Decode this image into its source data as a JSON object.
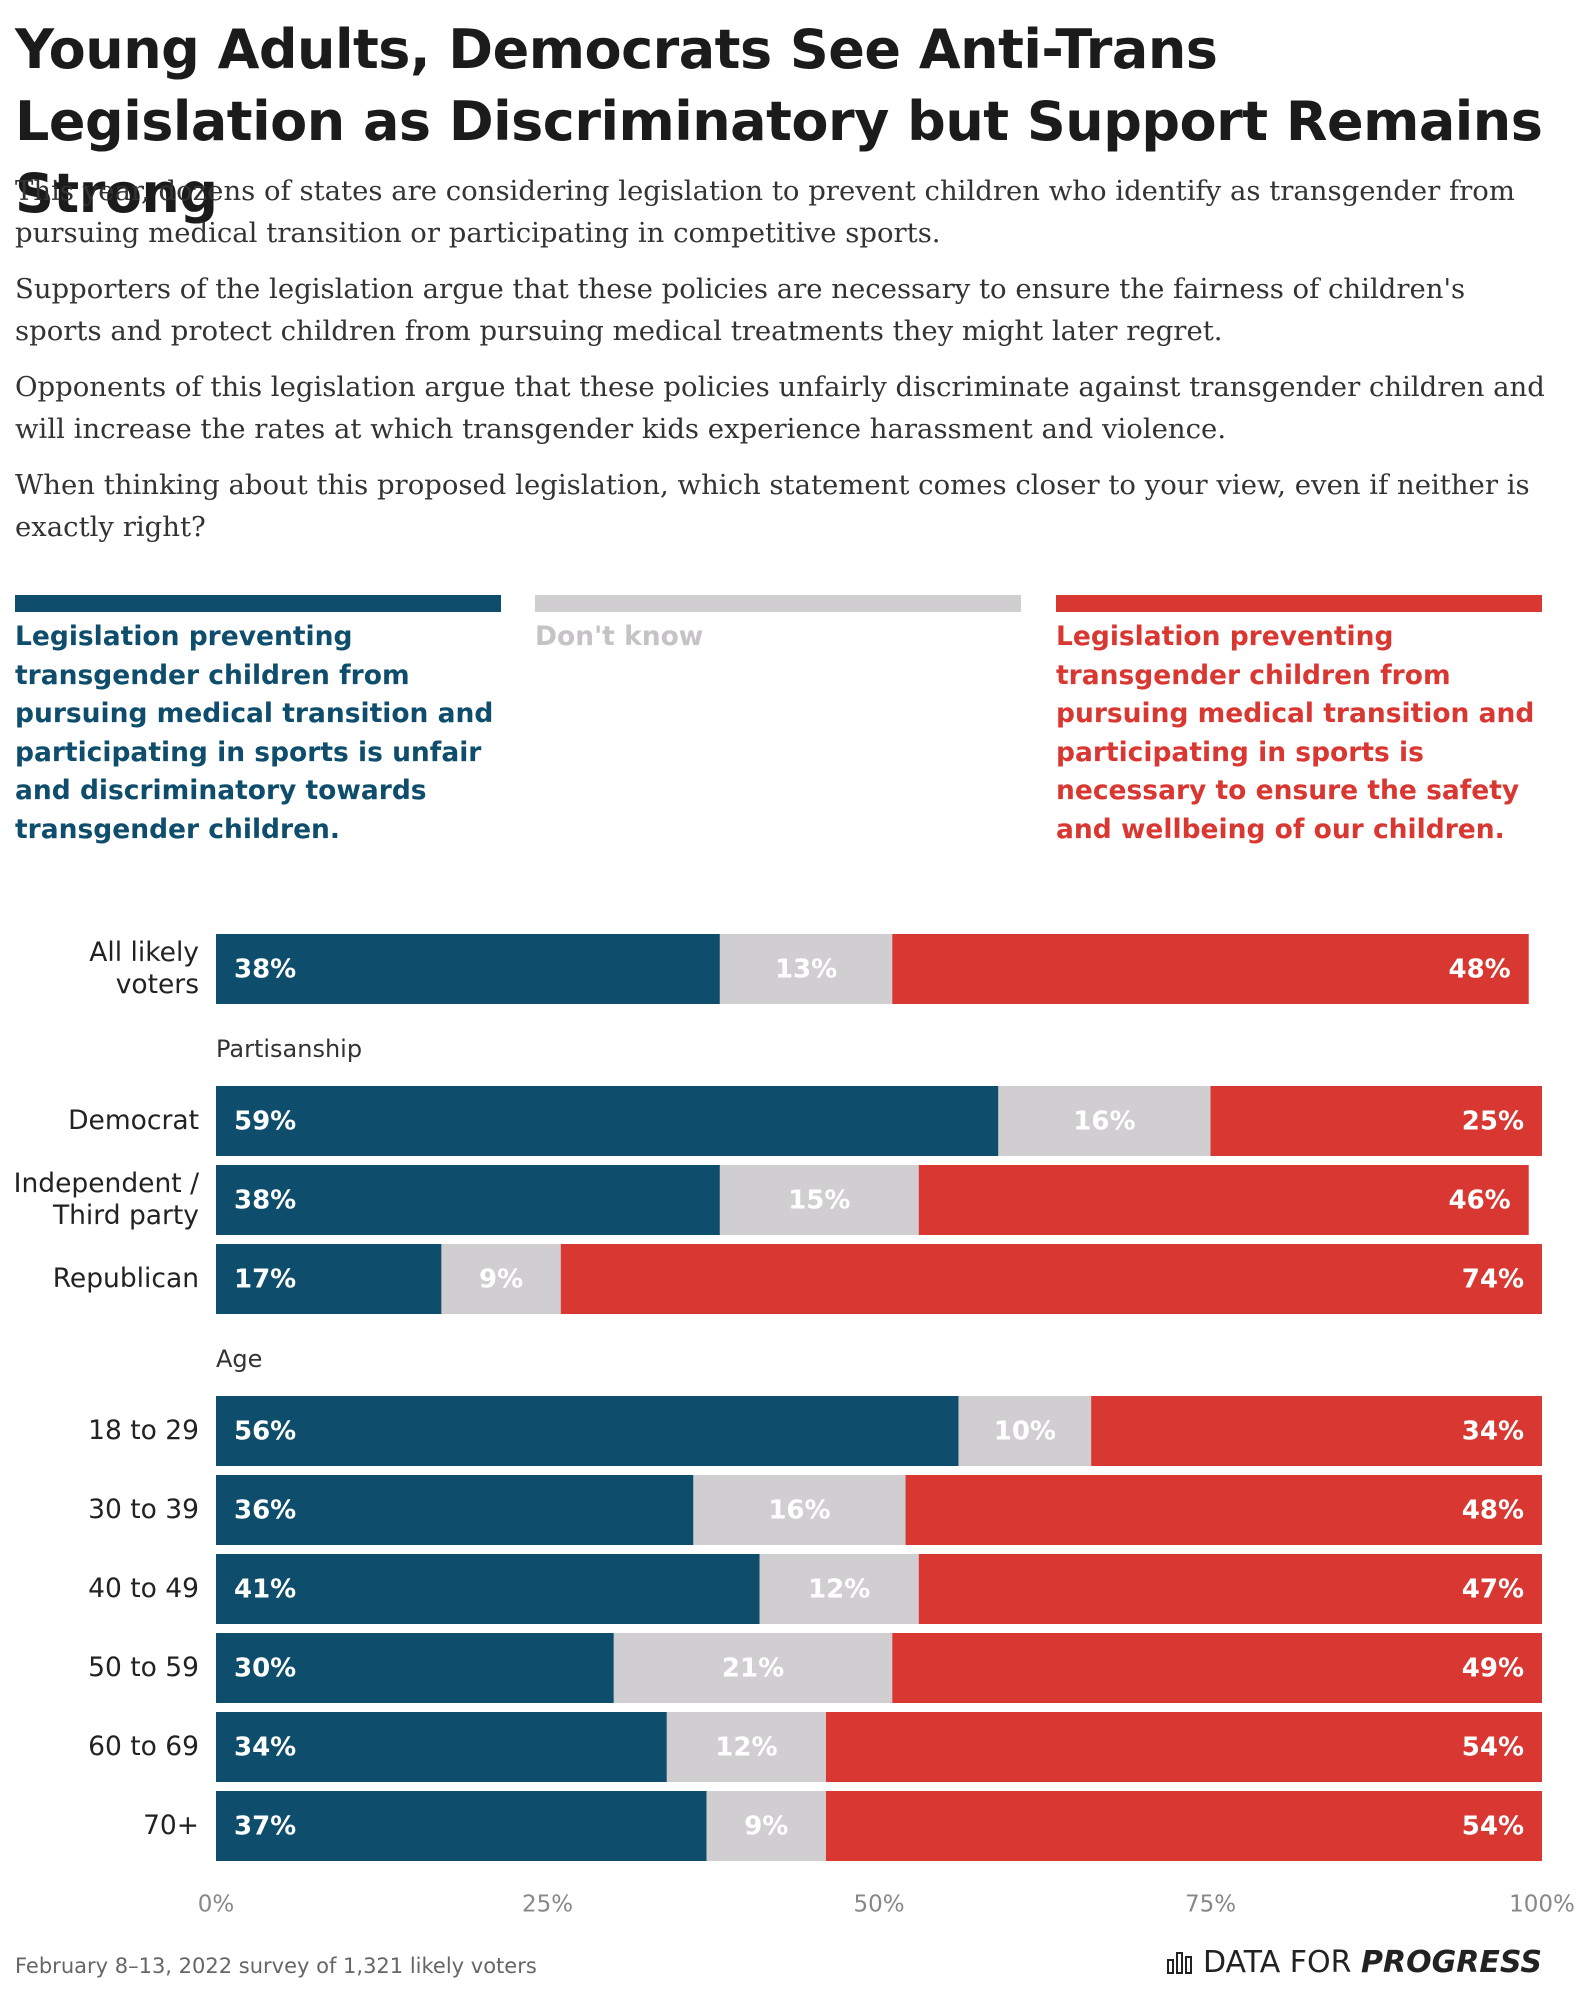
{
  "chart_data": {
    "type": "bar",
    "orientation": "horizontal",
    "stacked": true,
    "title": "Young Adults, Democrats See Anti-Trans Legislation as Discriminatory but Support Remains Strong",
    "description": [
      "This year, dozens of states are considering legislation to prevent children who identify as transgender from pursuing medical transition or participating in competitive sports.",
      "Supporters of the legislation argue that these policies are necessary to ensure the fairness of children's sports and protect children from pursuing medical treatments they might later regret.",
      "Opponents of this legislation argue that these policies unfairly discriminate against transgender children and will increase the rates at which transgender kids experience harassment and violence.",
      "When thinking about this proposed legislation, which statement comes closer to your view, even if neither is exactly right?"
    ],
    "categories": [
      "All likely voters",
      "Democrat",
      "Independent / Third party",
      "Republican",
      "18 to 29",
      "30 to 39",
      "40 to 49",
      "50 to 59",
      "60 to 69",
      "70+"
    ],
    "group_labels": [
      "Partisanship",
      "Age"
    ],
    "series": [
      {
        "name": "Legislation preventing transgender children from pursuing medical transition and participating in sports is unfair and discriminatory towards transgender children.",
        "color": "#0e4d6b",
        "values": [
          38,
          59,
          38,
          17,
          56,
          36,
          41,
          30,
          34,
          37
        ],
        "value_labels": [
          "38%",
          "59%",
          "38%",
          "17%",
          "56%",
          "36%",
          "41%",
          "30%",
          "34%",
          "37%"
        ]
      },
      {
        "name": "Don't know",
        "color": "#d1ced1",
        "values": [
          13,
          16,
          15,
          9,
          10,
          16,
          12,
          21,
          12,
          9
        ],
        "value_labels": [
          "13%",
          "16%",
          "15%",
          "9%",
          "10%",
          "16%",
          "12%",
          "21%",
          "12%",
          "9%"
        ]
      },
      {
        "name": "Legislation preventing transgender children from pursuing medical transition and participating in sports is necessary to ensure the safety and wellbeing of our children.",
        "color": "#d93832",
        "values": [
          48,
          25,
          46,
          74,
          34,
          48,
          47,
          49,
          54,
          54
        ],
        "value_labels": [
          "48%",
          "25%",
          "46%",
          "74%",
          "34%",
          "48%",
          "47%",
          "49%",
          "54%",
          "54%"
        ]
      }
    ],
    "xlim": [
      0,
      100
    ],
    "xticks": [
      {
        "value": 0,
        "label": "0%"
      },
      {
        "value": 25,
        "label": "25%"
      },
      {
        "value": 50,
        "label": "50%"
      },
      {
        "value": 75,
        "label": "75%"
      },
      {
        "value": 100,
        "label": "100%"
      }
    ],
    "grid": false,
    "note": "February 8–13, 2022 survey of 1,321 likely voters",
    "brand": [
      "DATA FOR",
      "PROGRESS"
    ]
  }
}
